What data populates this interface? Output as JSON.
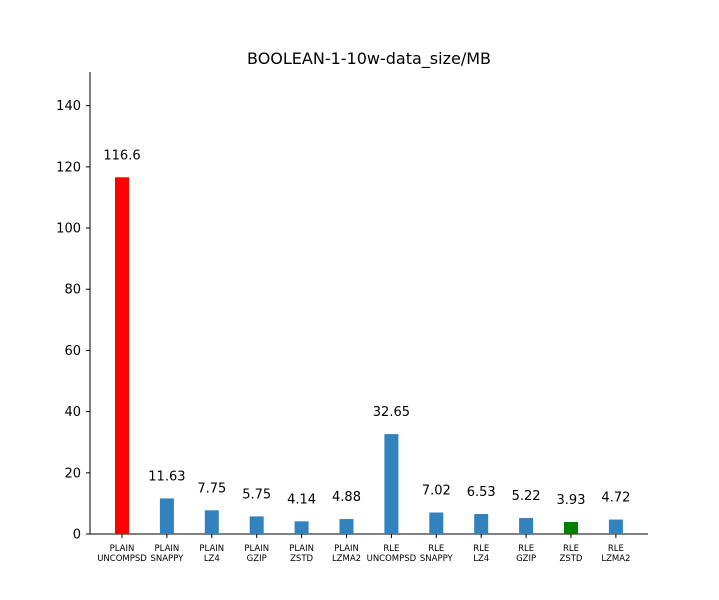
{
  "chart_data": {
    "type": "bar",
    "title": "BOOLEAN-1-10w-data_size/MB",
    "xlabel": "",
    "ylabel": "",
    "categories": [
      [
        "PLAIN",
        "UNCOMPSD"
      ],
      [
        "PLAIN",
        "SNAPPY"
      ],
      [
        "PLAIN",
        "LZ4"
      ],
      [
        "PLAIN",
        "GZIP"
      ],
      [
        "PLAIN",
        "ZSTD"
      ],
      [
        "PLAIN",
        "LZMA2"
      ],
      [
        "RLE",
        "UNCOMPSD"
      ],
      [
        "RLE",
        "SNAPPY"
      ],
      [
        "RLE",
        "LZ4"
      ],
      [
        "RLE",
        "GZIP"
      ],
      [
        "RLE",
        "ZSTD"
      ],
      [
        "RLE",
        "LZMA2"
      ]
    ],
    "values": [
      116.6,
      11.63,
      7.75,
      5.75,
      4.14,
      4.88,
      32.65,
      7.02,
      6.53,
      5.22,
      3.93,
      4.72
    ],
    "data_labels": [
      "116.6",
      "11.63",
      "7.75",
      "5.75",
      "4.14",
      "4.88",
      "32.65",
      "7.02",
      "6.53",
      "5.22",
      "3.93",
      "4.72"
    ],
    "bar_colors": [
      "#ff0000",
      "#3182bd",
      "#3182bd",
      "#3182bd",
      "#3182bd",
      "#3182bd",
      "#3182bd",
      "#3182bd",
      "#3182bd",
      "#3182bd",
      "#008000",
      "#3182bd"
    ],
    "ylim": [
      0,
      151
    ],
    "yticks": [
      0,
      20,
      40,
      60,
      80,
      100,
      120,
      140
    ],
    "grid": false,
    "legend": "none"
  }
}
